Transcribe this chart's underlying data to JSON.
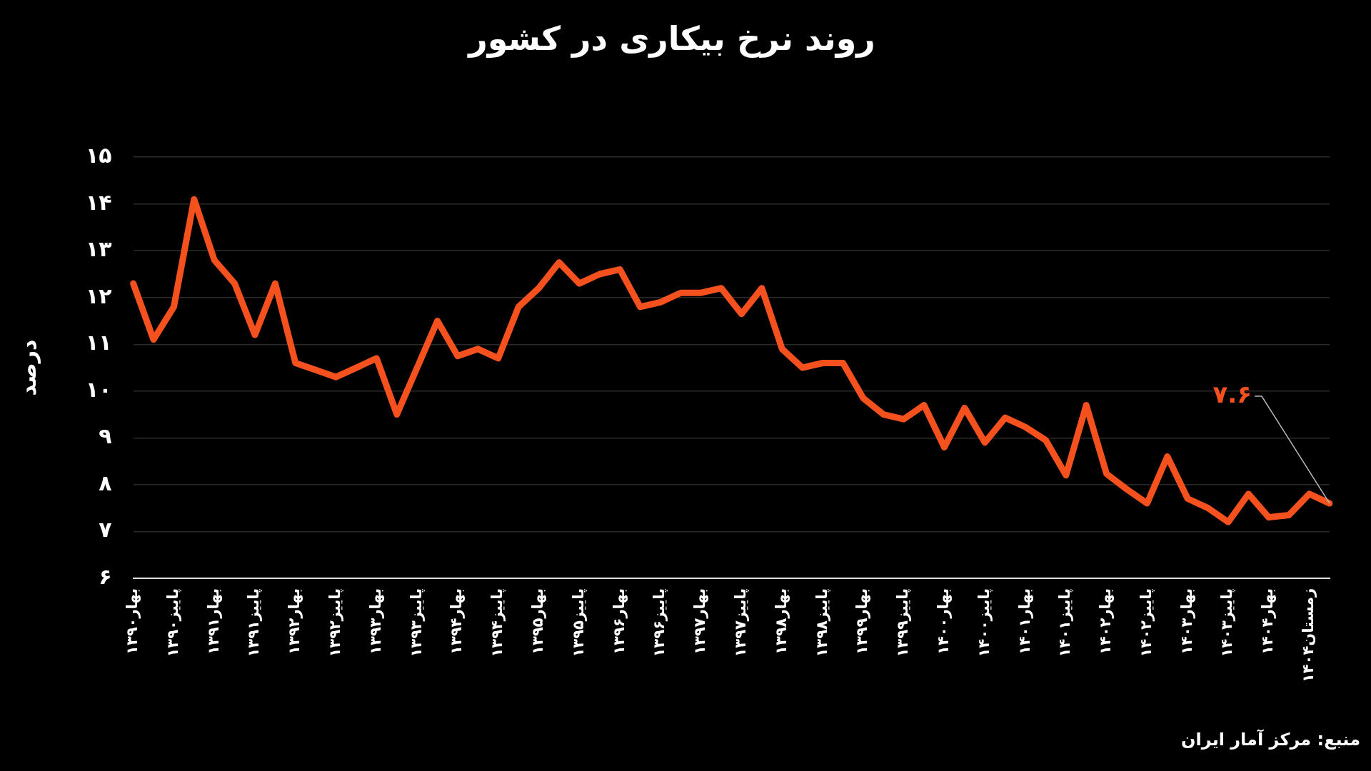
{
  "chart_data": {
    "type": "line",
    "title": "روند نرخ بیکاری در کشور",
    "ylabel": "درصد",
    "categories": [
      "بهار۱۳۹۰",
      null,
      "پاییز۱۳۹۰",
      null,
      "بهار۱۳۹۱",
      null,
      "پاییز۱۳۹۱",
      null,
      "بهار۱۳۹۲",
      null,
      "پاییز۱۳۹۲",
      null,
      "بهار۱۳۹۳",
      null,
      "پاییز۱۳۹۳",
      null,
      "بهار۱۳۹۴",
      null,
      "پاییز۱۳۹۴",
      null,
      "بهار۱۳۹۵",
      null,
      "پاییز۱۳۹۵",
      null,
      "بهار۱۳۹۶",
      null,
      "پاییز۱۳۹۶",
      null,
      "بهار۱۳۹۷",
      null,
      "پاییز۱۳۹۷",
      null,
      "بهار۱۳۹۸",
      null,
      "پاییز۱۳۹۸",
      null,
      "بهار۱۳۹۹",
      null,
      "پاییز۱۳۹۹",
      null,
      "بهار۱۴۰۰",
      null,
      "پاییز۱۴۰۰",
      null,
      "بهار۱۴۰۱",
      null,
      "پاییز۱۴۰۱",
      null,
      "بهار۱۴۰۲",
      null,
      "پاییز۱۴۰۲",
      null,
      "بهار۱۴۰۳",
      null,
      "پاییز۱۴۰۳",
      null,
      "بهار۱۴۰۴",
      null,
      "زمستان۱۴۰۴",
      null
    ],
    "series": [
      {
        "color": "#f4511e",
        "values": [
          12.3,
          11.1,
          11.8,
          14.1,
          12.8,
          12.3,
          11.2,
          12.3,
          10.6,
          10.45,
          10.3,
          10.5,
          10.7,
          9.5,
          10.5,
          11.5,
          10.75,
          10.9,
          10.7,
          11.8,
          12.2,
          12.75,
          12.3,
          12.5,
          12.6,
          11.8,
          11.9,
          12.1,
          12.1,
          12.2,
          11.65,
          12.2,
          10.9,
          10.5,
          10.6,
          10.6,
          9.85,
          9.5,
          9.4,
          9.7,
          8.8,
          9.64,
          8.9,
          9.43,
          9.23,
          8.95,
          8.2,
          9.7,
          8.23,
          7.9,
          7.6,
          8.6,
          7.7,
          7.5,
          7.2,
          7.8,
          7.3,
          7.35,
          7.8,
          7.6
        ],
        "value_labels": [
          null,
          null,
          null,
          null,
          null,
          null,
          null,
          null,
          null,
          null,
          null,
          null,
          null,
          null,
          null,
          null,
          null,
          null,
          null,
          null,
          null,
          null,
          null,
          null,
          null,
          null,
          null,
          null,
          null,
          null,
          null,
          null,
          null,
          null,
          null,
          null,
          null,
          null,
          null,
          null,
          null,
          null,
          null,
          null,
          null,
          null,
          null,
          null,
          null,
          null,
          null,
          null,
          null,
          null,
          null,
          null,
          null,
          null,
          null,
          "۷.۶"
        ]
      }
    ],
    "ylim": [
      6,
      15
    ],
    "yticks": [
      {
        "value": 6,
        "label": "۶"
      },
      {
        "value": 7,
        "label": "۷"
      },
      {
        "value": 8,
        "label": "۸"
      },
      {
        "value": 9,
        "label": "۹"
      },
      {
        "value": 10,
        "label": "۱۰"
      },
      {
        "value": 11,
        "label": "۱۱"
      },
      {
        "value": 12,
        "label": "۱۲"
      },
      {
        "value": 13,
        "label": "۱۳"
      },
      {
        "value": 14,
        "label": "۱۴"
      },
      {
        "value": 15,
        "label": "۱۵"
      }
    ],
    "grid": "y",
    "legend": false,
    "marker": "none",
    "line_style": "solid",
    "annotations": [
      "منبع: مرکز آمار ایران"
    ]
  }
}
